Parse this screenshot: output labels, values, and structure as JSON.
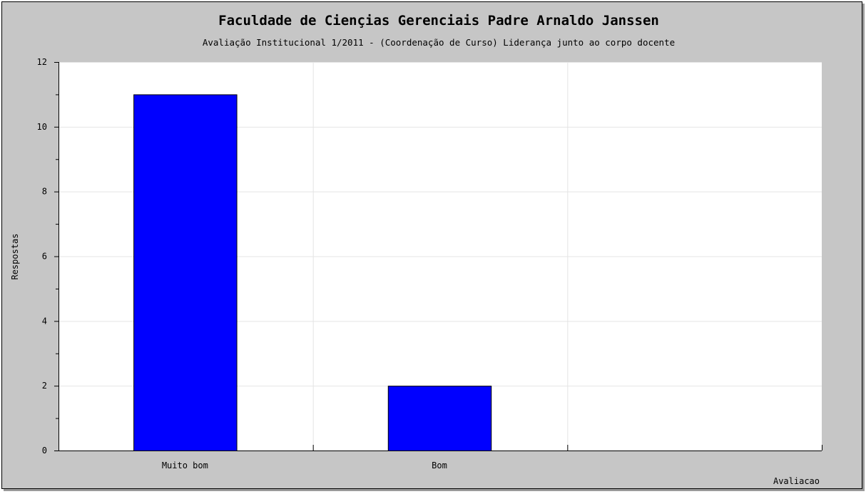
{
  "chart_data": {
    "type": "bar",
    "title": "Faculdade de Ciençias Gerenciais Padre Arnaldo Janssen",
    "subtitle": "Avaliação Institucional 1/2011 - (Coordenação de Curso) Liderança junto ao corpo docente",
    "xlabel": "Avaliacao",
    "ylabel": "Respostas",
    "categories": [
      "Muito bom",
      "Bom",
      ""
    ],
    "values": [
      11,
      2,
      0
    ],
    "ylim": [
      0,
      12
    ],
    "yticks": [
      0,
      2,
      4,
      6,
      8,
      10,
      12
    ],
    "grid": true,
    "colors": {
      "bar": "#0000ff",
      "bar_border": "#000000",
      "plot_background": "#ffffff",
      "frame_background": "#c6c6c6",
      "grid": "#e4e4e4"
    }
  }
}
